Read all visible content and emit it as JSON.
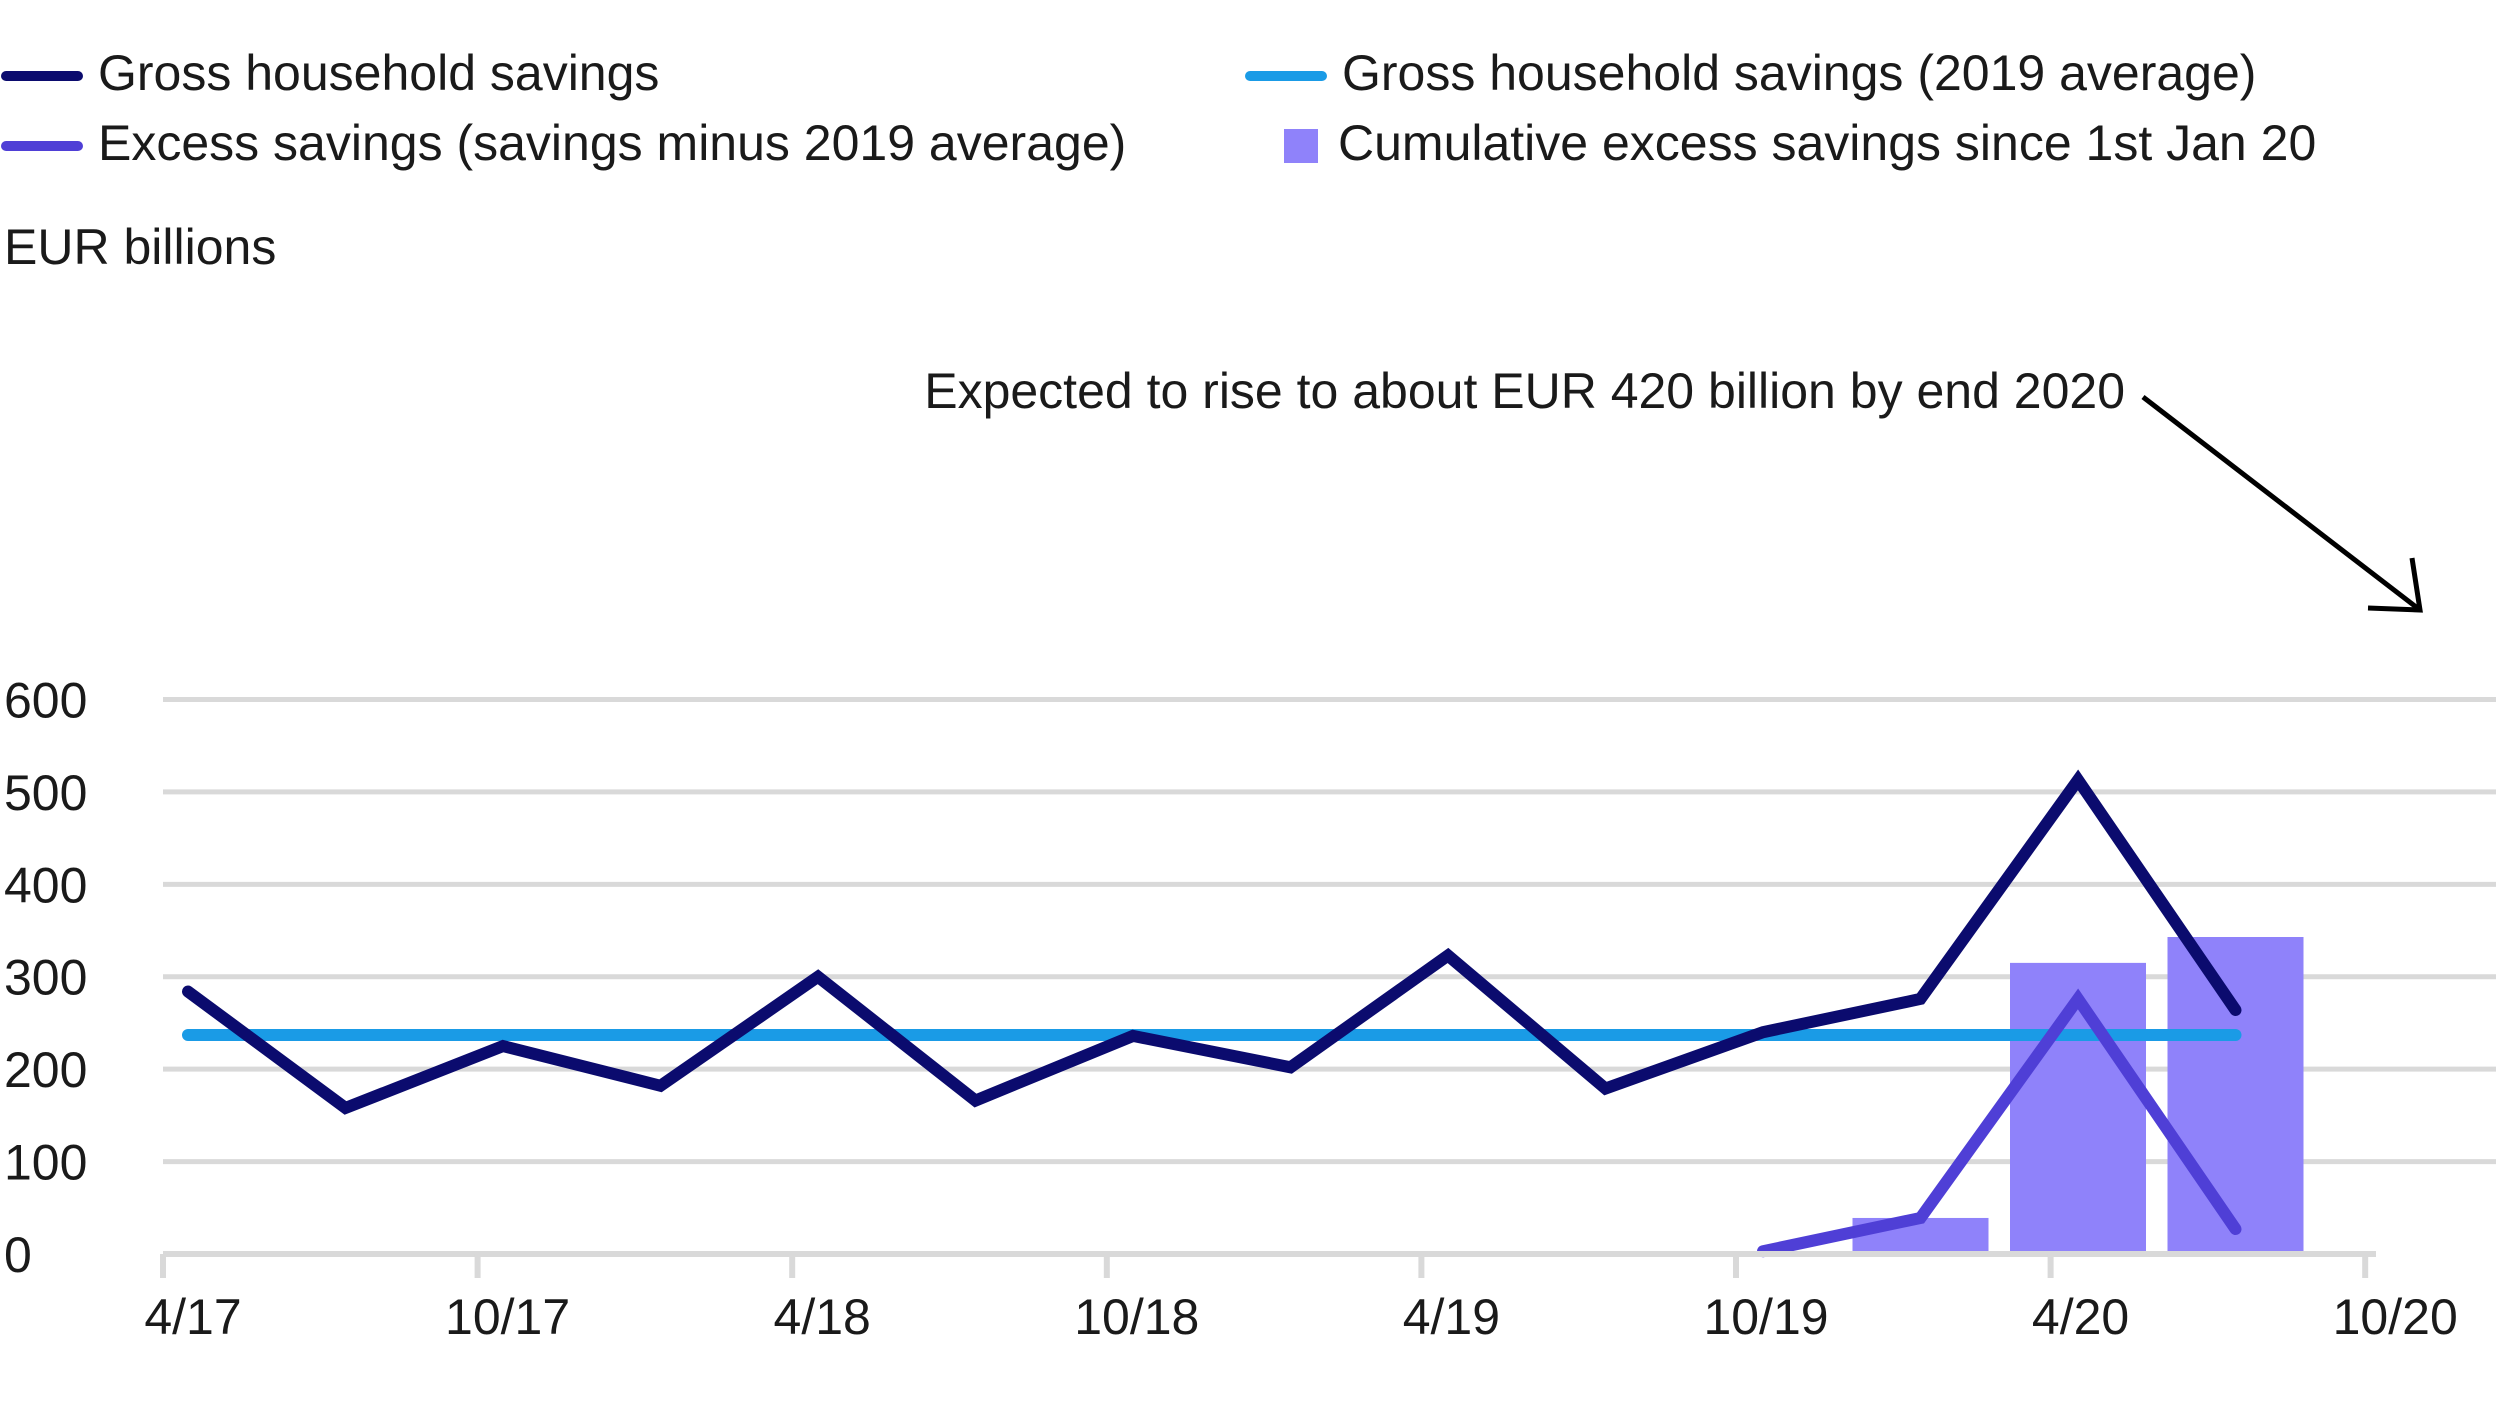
{
  "chart_data": {
    "type": "bar+line",
    "unit_label": "EUR billions",
    "x_tick_labels": [
      "4/17",
      "10/17",
      "4/18",
      "10/18",
      "4/19",
      "10/19",
      "4/20",
      "10/20"
    ],
    "ylim": [
      0,
      600
    ],
    "y_ticks": [
      0,
      100,
      200,
      300,
      400,
      500,
      600
    ],
    "grid": true,
    "legend_position": "top",
    "legend": [
      {
        "label": "Gross household savings",
        "type": "line",
        "color": "#0b0b6e"
      },
      {
        "label": "Gross household savings (2019 average)",
        "type": "line",
        "color": "#1a9be6"
      },
      {
        "label": "Excess savings (savings minus 2019 average)",
        "type": "line",
        "color": "#4f3fd6"
      },
      {
        "label": "Cumulative excess savings since 1st Jan 20",
        "type": "bar",
        "color": "#8f82fa"
      }
    ],
    "series": [
      {
        "name": "Gross household savings",
        "type": "line",
        "color": "#0b0b6e",
        "x": [
          0,
          1,
          2,
          3,
          4,
          5,
          6,
          7,
          8,
          9,
          10,
          11,
          12,
          13
        ],
        "values": [
          284,
          158,
          225,
          182,
          300,
          166,
          236,
          202,
          323,
          179,
          240,
          276,
          513,
          264
        ]
      },
      {
        "name": "Gross household savings (2019 average)",
        "type": "line",
        "color": "#1a9be6",
        "x": [
          0,
          13
        ],
        "values": [
          237,
          237
        ]
      },
      {
        "name": "Excess savings (savings minus 2019 average)",
        "type": "line",
        "color": "#4f3fd6",
        "x": [
          10,
          11,
          12,
          13
        ],
        "values": [
          3,
          39,
          276,
          27
        ]
      },
      {
        "name": "Cumulative excess savings since 1st Jan 20",
        "type": "bar",
        "color": "#8f82fa",
        "x": [
          11,
          12,
          13
        ],
        "values": [
          39,
          315,
          343
        ]
      }
    ],
    "annotation": {
      "text": "Expected to rise to about EUR 420 billion by end 2020",
      "points_to": {
        "x": 14.3,
        "y": 420
      }
    }
  }
}
